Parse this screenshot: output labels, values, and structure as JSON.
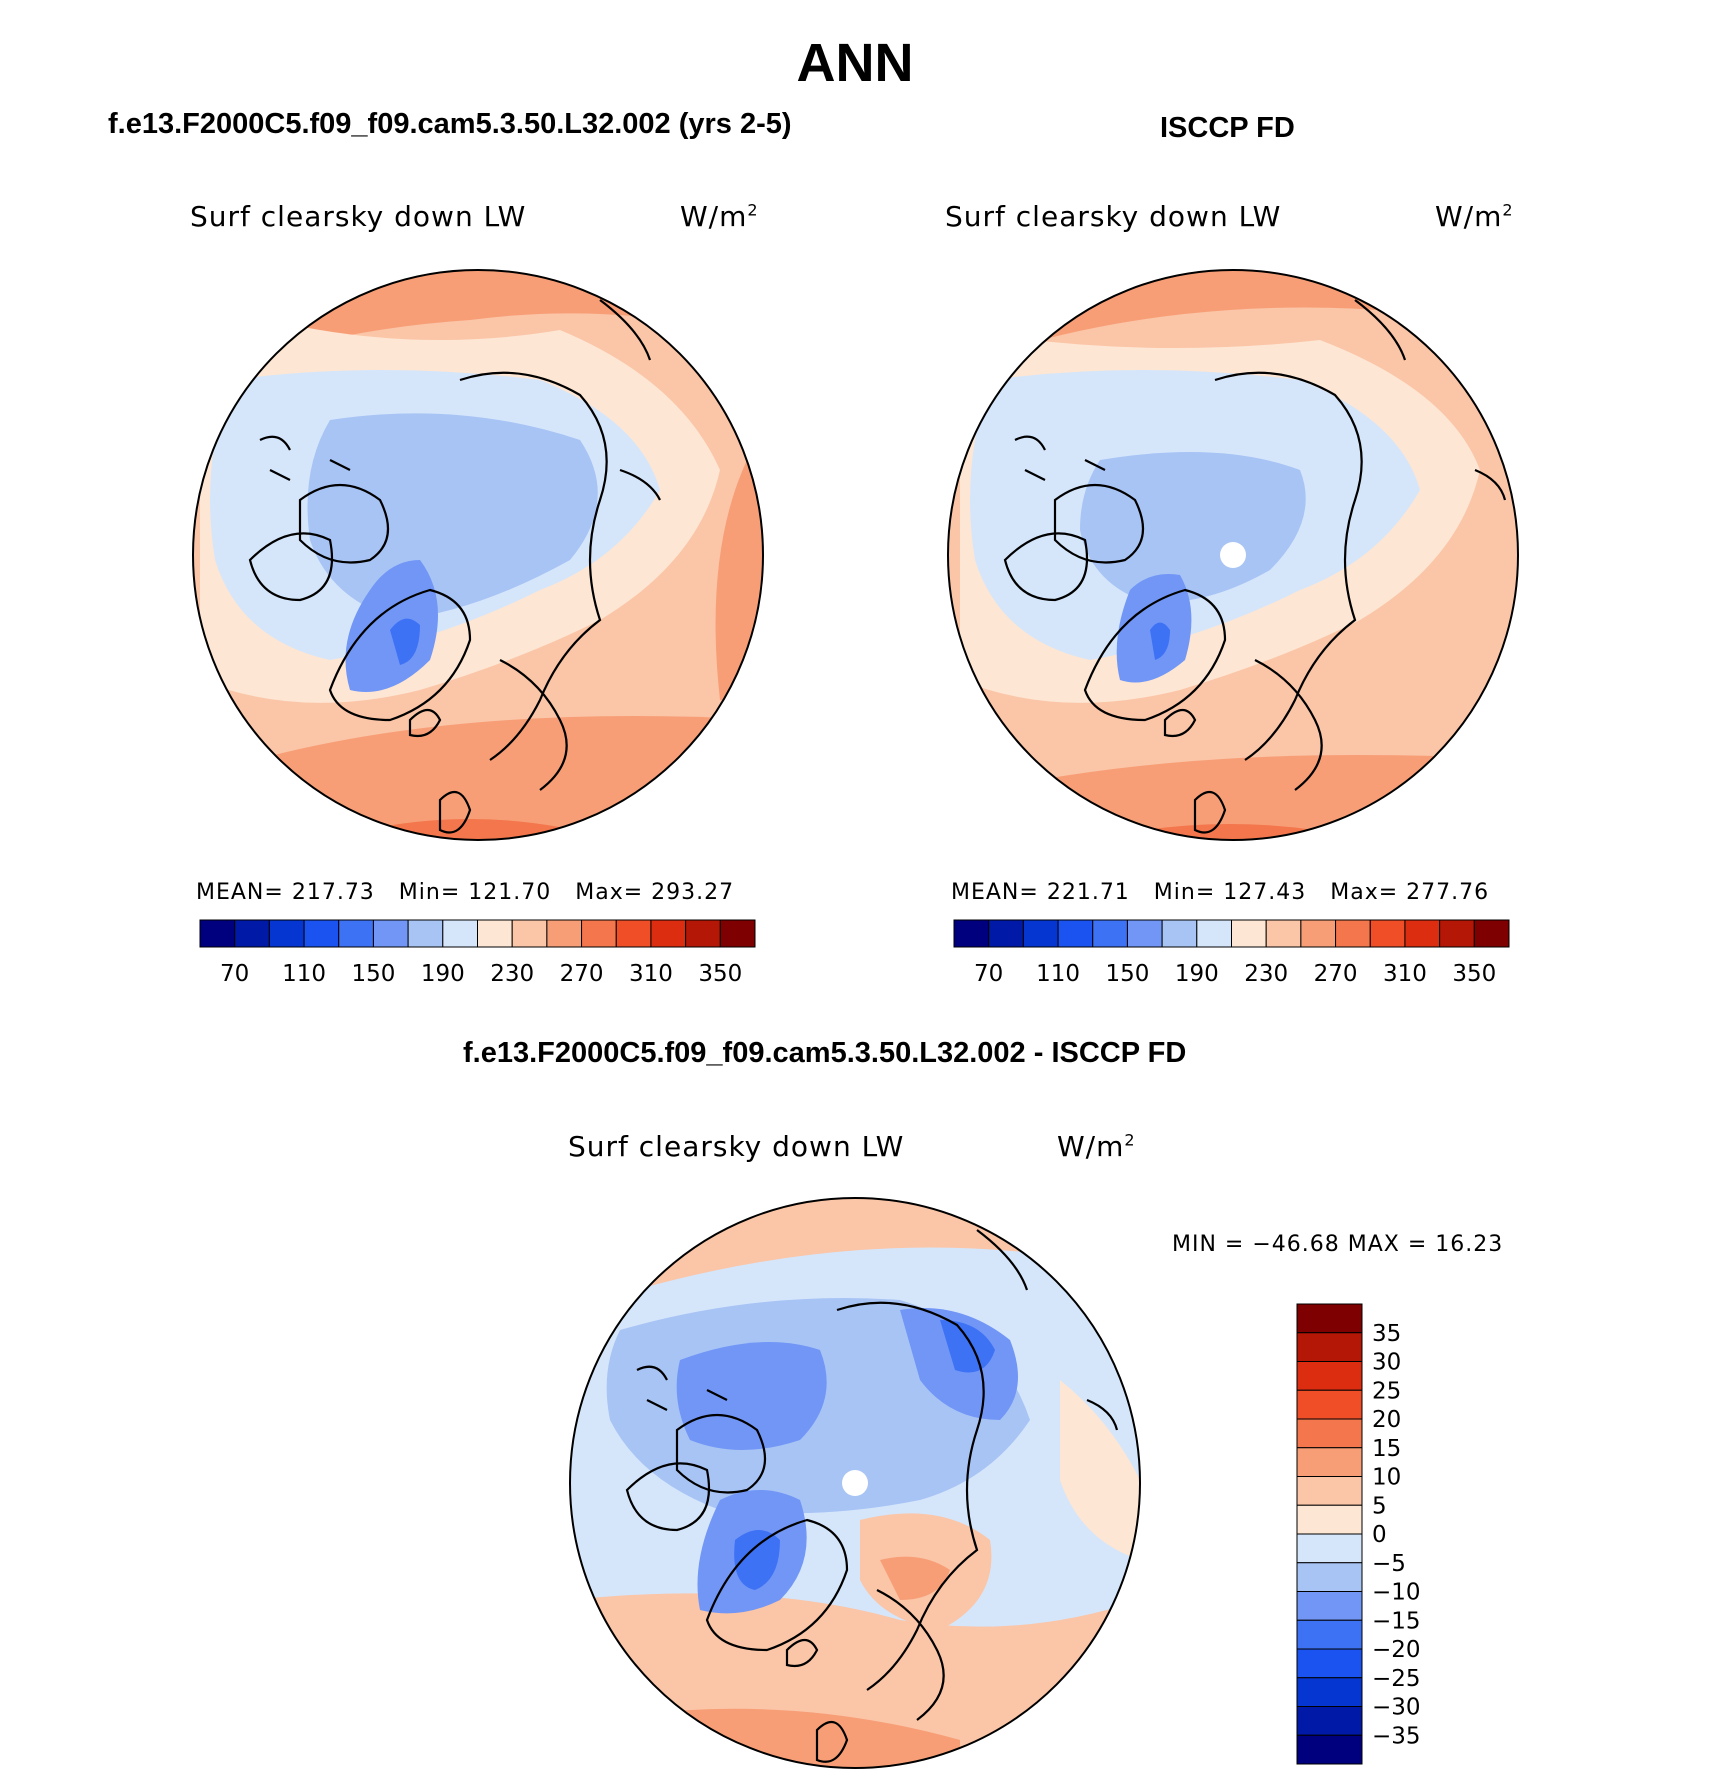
{
  "title": "ANN",
  "panels": [
    {
      "id": "test",
      "case_title": "f.e13.F2000C5.f09_f09.cam5.3.50.L32.002 (yrs 2-5)",
      "field_label": "Surf clearsky down LW",
      "units_base": "W/m",
      "units_sup": "2",
      "mean_label": "MEAN=",
      "mean": "217.73",
      "min_label": "Min=",
      "min": "121.70",
      "max_label": "Max=",
      "max": "293.27"
    },
    {
      "id": "obs",
      "case_title": "ISCCP FD",
      "field_label": "Surf clearsky down LW",
      "units_base": "W/m",
      "units_sup": "2",
      "mean_label": "MEAN=",
      "mean": "221.71",
      "min_label": "Min=",
      "min": "127.43",
      "max_label": "Max=",
      "max": "277.76"
    }
  ],
  "diff_panel": {
    "case_title": "f.e13.F2000C5.f09_f09.cam5.3.50.L32.002 - ISCCP FD",
    "field_label": "Surf clearsky down LW",
    "units_base": "W/m",
    "units_sup": "2",
    "minmax_text": "MIN = −46.68 MAX =  16.23"
  },
  "colorbar_top": {
    "colors": [
      "#00007f",
      "#0019a6",
      "#0536d1",
      "#1a53f0",
      "#3e72f5",
      "#7196f6",
      "#a8c4f5",
      "#d5e6fb",
      "#fde6d3",
      "#fbc5a7",
      "#f79e76",
      "#f3764c",
      "#ef4e27",
      "#dc2d10",
      "#b41705",
      "#7f0000"
    ],
    "tick_labels": [
      "70",
      "110",
      "150",
      "190",
      "230",
      "270",
      "310",
      "350"
    ]
  },
  "colorbar_diff": {
    "colors": [
      "#7f0000",
      "#b41705",
      "#dc2d10",
      "#ef4e27",
      "#f3764c",
      "#f79e76",
      "#fbc5a7",
      "#fde6d3",
      "#d5e6fb",
      "#a8c4f5",
      "#7196f6",
      "#3e72f5",
      "#1a53f0",
      "#0536d1",
      "#0019a6",
      "#00007f"
    ],
    "tick_labels": [
      "35",
      "30",
      "25",
      "20",
      "15",
      "10",
      "5",
      "0",
      "−5",
      "−10",
      "−15",
      "−20",
      "−25",
      "−30",
      "−35"
    ]
  }
}
